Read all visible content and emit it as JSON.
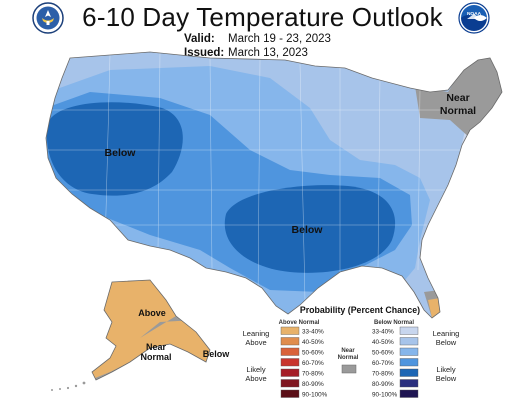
{
  "header": {
    "title": "6-10 Day Temperature Outlook",
    "valid_label": "Valid:",
    "valid_value": "March 19 - 23, 2023",
    "issued_label": "Issued:",
    "issued_value": "March 13, 2023",
    "left_logo": "doc-seal-icon",
    "right_logo": "noaa-logo-icon",
    "right_logo_text": "NOAA"
  },
  "map_labels": {
    "west_low": "Below",
    "south_low": "Below",
    "northeast": "Near\nNormal",
    "northeast_line1": "Near",
    "northeast_line2": "Normal",
    "alaska_high": "Above",
    "alaska_near_line1": "Near",
    "alaska_near_line2": "Normal",
    "alaska_low": "Below"
  },
  "legend": {
    "title": "Probability (Percent Chance)",
    "above_header": "Above Normal",
    "below_header": "Below Normal",
    "near_header_line1": "Near",
    "near_header_line2": "Normal",
    "leaning_above_line1": "Leaning",
    "leaning_above_line2": "Above",
    "likely_above_line1": "Likely",
    "likely_above_line2": "Above",
    "leaning_below_line1": "Leaning",
    "leaning_below_line2": "Below",
    "likely_below_line1": "Likely",
    "likely_below_line2": "Below",
    "above": [
      {
        "range": "33-40%",
        "color": "#e8b26a"
      },
      {
        "range": "40-50%",
        "color": "#e08d4d"
      },
      {
        "range": "50-60%",
        "color": "#d9623a"
      },
      {
        "range": "60-70%",
        "color": "#c8352d"
      },
      {
        "range": "70-80%",
        "color": "#a51e27"
      },
      {
        "range": "80-90%",
        "color": "#7f1620"
      },
      {
        "range": "90-100%",
        "color": "#5a0e16"
      }
    ],
    "below": [
      {
        "range": "33-40%",
        "color": "#c8d6ee"
      },
      {
        "range": "40-50%",
        "color": "#a7c4ea"
      },
      {
        "range": "50-60%",
        "color": "#86b6eb"
      },
      {
        "range": "60-70%",
        "color": "#4f95de"
      },
      {
        "range": "70-80%",
        "color": "#1d66b4"
      },
      {
        "range": "80-90%",
        "color": "#2a2f7e"
      },
      {
        "range": "90-100%",
        "color": "#1f1552"
      }
    ],
    "near_color": "#9a9a9a"
  }
}
